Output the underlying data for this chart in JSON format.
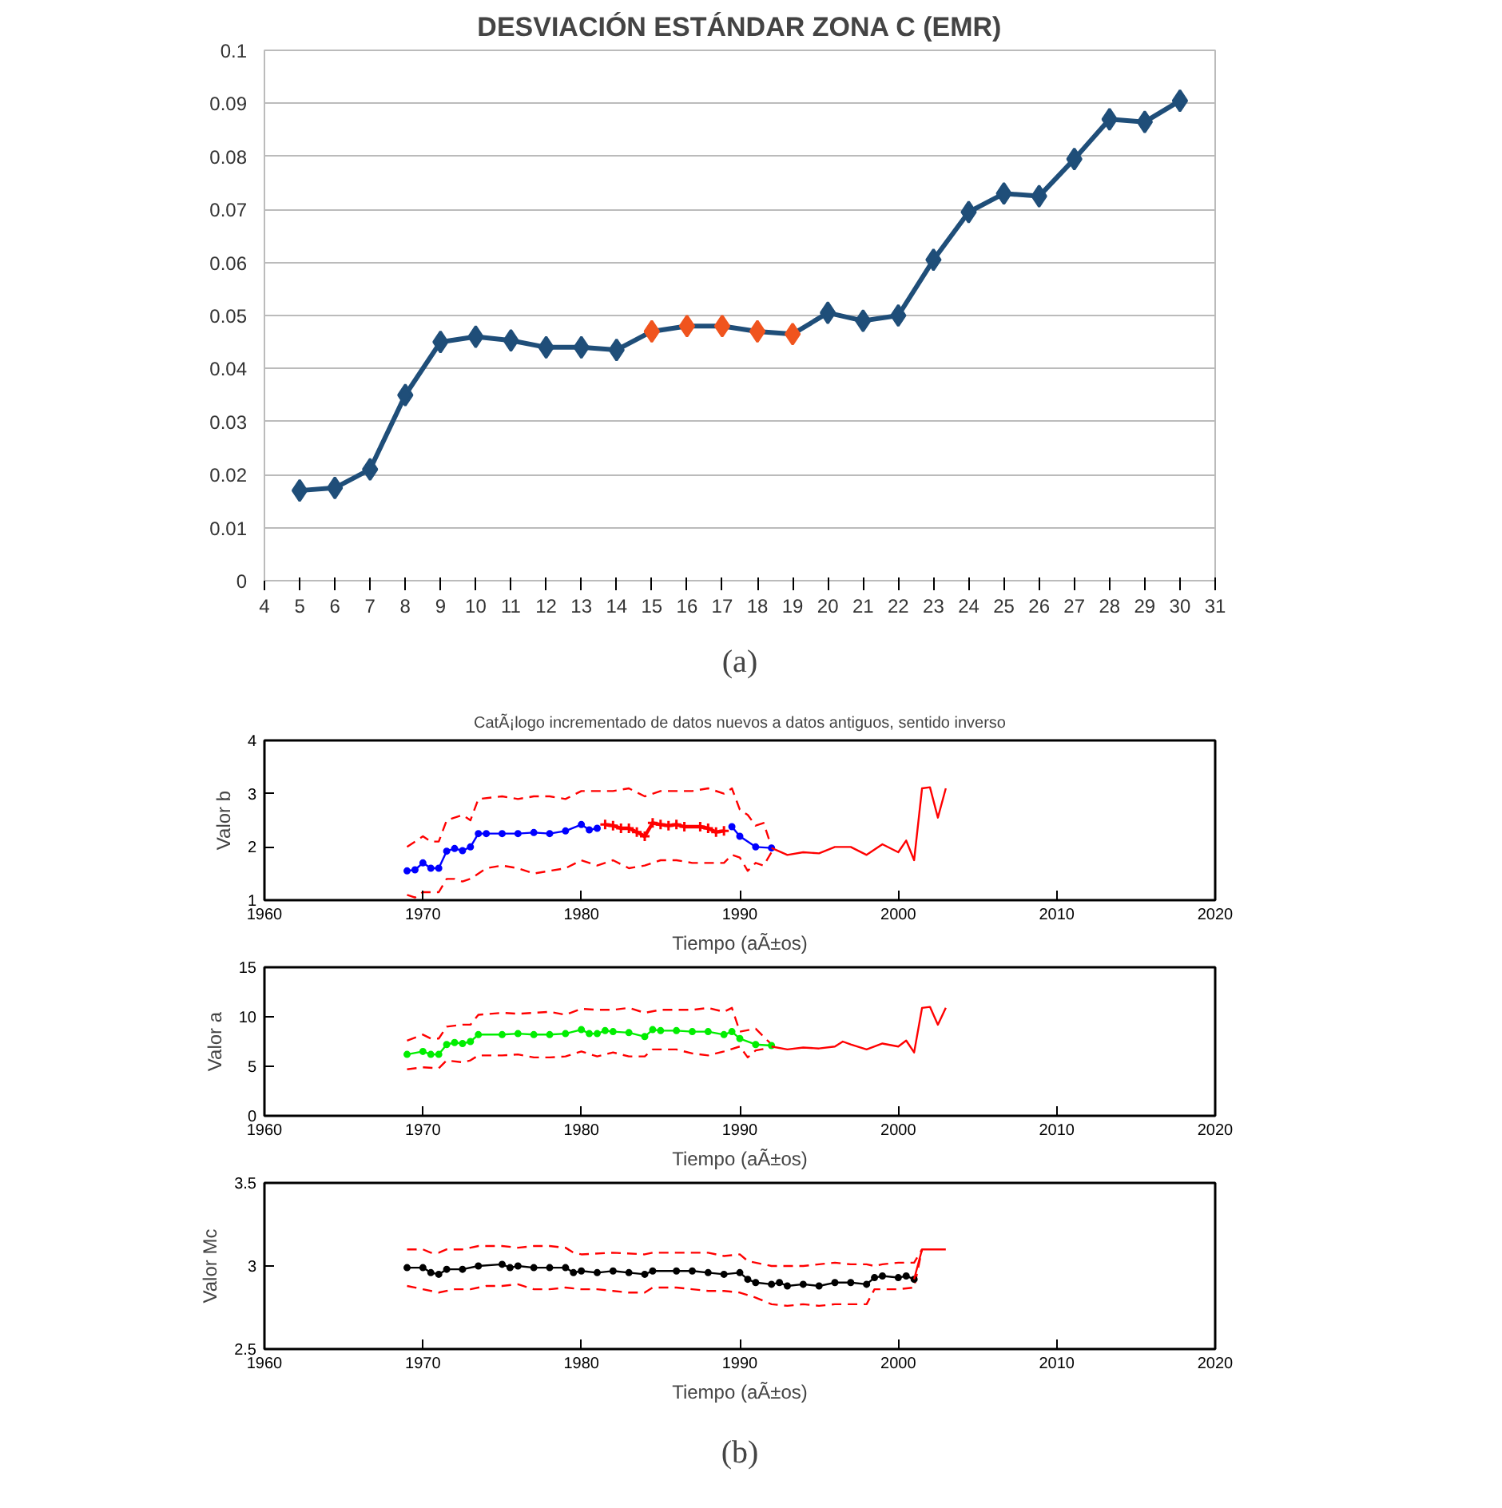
{
  "chart_data": [
    {
      "type": "line",
      "title": "DESVIACIÓN ESTÁNDAR ZONA C (EMR)",
      "xlim": [
        4,
        31
      ],
      "xticks": [
        4,
        5,
        6,
        7,
        8,
        9,
        10,
        11,
        12,
        13,
        14,
        15,
        16,
        17,
        18,
        19,
        20,
        21,
        22,
        23,
        24,
        25,
        26,
        27,
        28,
        29,
        30,
        31
      ],
      "ylim": [
        0,
        0.1
      ],
      "yticks": [
        0,
        0.01,
        0.02,
        0.03,
        0.04,
        0.05,
        0.06,
        0.07,
        0.08,
        0.09,
        0.1
      ],
      "grid": "y",
      "annotations": [
        "(a)"
      ],
      "series": [
        {
          "color": "#1f4e79",
          "marker": "diamond",
          "line_style": "solid",
          "x": [
            5,
            6,
            7,
            8,
            9,
            10,
            11,
            12,
            13,
            14,
            15,
            16,
            17,
            18,
            19,
            20,
            21,
            22,
            23,
            24,
            25,
            26,
            27,
            28,
            29,
            30
          ],
          "values": [
            0.017,
            0.0175,
            0.021,
            0.035,
            0.045,
            0.046,
            0.0453,
            0.044,
            0.044,
            0.0435,
            0.047,
            0.048,
            0.048,
            0.047,
            0.0465,
            0.0505,
            0.049,
            0.05,
            0.0605,
            0.0695,
            0.073,
            0.0725,
            0.0795,
            0.087,
            0.0865,
            0.0905
          ],
          "colors": [
            "#1f4e79",
            "#1f4e79",
            "#1f4e79",
            "#1f4e79",
            "#1f4e79",
            "#1f4e79",
            "#1f4e79",
            "#1f4e79",
            "#1f4e79",
            "#1f4e79",
            "#f0541e",
            "#f0541e",
            "#f0541e",
            "#f0541e",
            "#f0541e",
            "#1f4e79",
            "#1f4e79",
            "#1f4e79",
            "#1f4e79",
            "#1f4e79",
            "#1f4e79",
            "#1f4e79",
            "#1f4e79",
            "#1f4e79",
            "#1f4e79",
            "#1f4e79"
          ]
        }
      ]
    },
    {
      "type": "line",
      "title": "CatÃ¡logo incrementado de datos nuevos a datos antiguos, sentido inverso",
      "xlabel": "Tiempo (aÃ±os)",
      "ylabel": "Valor b",
      "xlim": [
        1960,
        2020
      ],
      "xticks": [
        1960,
        1970,
        1980,
        1990,
        2000,
        2010,
        2020
      ],
      "ylim": [
        1,
        4
      ],
      "yticks": [
        1,
        2,
        3,
        4
      ],
      "grid": false,
      "series": [
        {
          "color": "#ff0000",
          "marker": "none",
          "line_style": "dashed",
          "x": [
            1969,
            1970,
            1970.5,
            1971,
            1971.5,
            1972.5,
            1973,
            1973.5,
            1975,
            1976,
            1977,
            1978,
            1979,
            1980,
            1981,
            1982,
            1983,
            1984,
            1985,
            1986,
            1987,
            1988,
            1989,
            1989.5,
            1990,
            1990.5,
            1991,
            1991.5,
            1992
          ],
          "values": [
            2.0,
            2.2,
            2.1,
            2.1,
            2.5,
            2.6,
            2.5,
            2.9,
            2.95,
            2.9,
            2.95,
            2.95,
            2.9,
            3.05,
            3.05,
            3.05,
            3.1,
            2.95,
            3.05,
            3.05,
            3.05,
            3.1,
            3.0,
            3.1,
            2.7,
            2.6,
            2.4,
            2.45,
            2.0
          ]
        },
        {
          "color": "#ff0000",
          "marker": "none",
          "line_style": "dashed",
          "x": [
            1969,
            1969.5,
            1970,
            1971,
            1971.5,
            1972,
            1972.5,
            1973,
            1974,
            1975,
            1976,
            1977,
            1978,
            1979,
            1980,
            1981,
            1982,
            1983,
            1984,
            1985,
            1986,
            1987,
            1988,
            1989,
            1989.5,
            1990,
            1990.5,
            1991,
            1991.5,
            1992
          ],
          "values": [
            1.1,
            1.05,
            1.15,
            1.15,
            1.4,
            1.4,
            1.35,
            1.4,
            1.6,
            1.65,
            1.6,
            1.5,
            1.55,
            1.6,
            1.75,
            1.65,
            1.75,
            1.6,
            1.65,
            1.75,
            1.75,
            1.7,
            1.7,
            1.7,
            1.85,
            1.8,
            1.55,
            1.7,
            1.65,
            1.9
          ]
        },
        {
          "color": "#0000ff",
          "marker": "circle",
          "line_style": "solid",
          "x": [
            1969,
            1969.5,
            1970,
            1970.5,
            1971,
            1971.5,
            1972,
            1972.5,
            1973,
            1973.5,
            1974,
            1975,
            1976,
            1977,
            1978,
            1979,
            1980,
            1980.5,
            1981,
            null,
            1989.5,
            1990,
            1991,
            1992
          ],
          "values": [
            1.55,
            1.57,
            1.7,
            1.6,
            1.6,
            1.92,
            1.97,
            1.93,
            2.0,
            2.25,
            2.25,
            2.25,
            2.25,
            2.27,
            2.25,
            2.3,
            2.42,
            2.32,
            2.35,
            null,
            2.38,
            2.2,
            2.0,
            1.98
          ]
        },
        {
          "color": "#ff0000",
          "marker": "cross",
          "line_style": "solid",
          "x": [
            1981.5,
            1982,
            1982.5,
            1983,
            1983.5,
            1984,
            1984.5,
            1985,
            1985.5,
            1986,
            1986.5,
            1987.5,
            1988,
            1988.5,
            1989
          ],
          "values": [
            2.42,
            2.4,
            2.35,
            2.35,
            2.28,
            2.2,
            2.45,
            2.42,
            2.4,
            2.42,
            2.38,
            2.38,
            2.35,
            2.28,
            2.3
          ]
        },
        {
          "color": "#ff0000",
          "marker": "none",
          "line_style": "solid",
          "x": [
            1992,
            1993,
            1994,
            1995,
            1996,
            1997,
            1998,
            1999,
            2000,
            2000.5,
            2001,
            2001.5,
            2002,
            2002.5,
            2003
          ],
          "values": [
            1.98,
            1.85,
            1.9,
            1.88,
            2.0,
            2.0,
            1.85,
            2.05,
            1.9,
            2.12,
            1.75,
            3.1,
            3.12,
            2.55,
            3.1
          ]
        }
      ]
    },
    {
      "type": "line",
      "xlabel": "Tiempo (aÃ±os)",
      "ylabel": "Valor a",
      "xlim": [
        1960,
        2020
      ],
      "xticks": [
        1960,
        1970,
        1980,
        1990,
        2000,
        2010,
        2020
      ],
      "ylim": [
        0,
        15
      ],
      "yticks": [
        0,
        5,
        10,
        15
      ],
      "grid": false,
      "series": [
        {
          "color": "#ff0000",
          "marker": "none",
          "line_style": "dashed",
          "x": [
            1969,
            1970,
            1970.5,
            1971,
            1971.5,
            1972.5,
            1973,
            1973.5,
            1975,
            1976,
            1977,
            1978,
            1979,
            1980,
            1981,
            1982,
            1983,
            1984,
            1985,
            1986,
            1987,
            1988,
            1989,
            1989.5,
            1990,
            1991,
            1992
          ],
          "values": [
            7.6,
            8.2,
            7.8,
            7.8,
            9.0,
            9.2,
            9.2,
            10.2,
            10.4,
            10.3,
            10.4,
            10.5,
            10.2,
            10.8,
            10.7,
            10.7,
            10.9,
            10.4,
            10.7,
            10.7,
            10.7,
            10.9,
            10.5,
            10.9,
            8.5,
            8.8,
            7.2
          ]
        },
        {
          "color": "#ff0000",
          "marker": "none",
          "line_style": "dashed",
          "x": [
            1969,
            1970,
            1971,
            1971.5,
            1972.5,
            1973,
            1973.5,
            1975,
            1976,
            1977,
            1978,
            1979,
            1980,
            1981,
            1982,
            1983,
            1984,
            1984.5,
            1986,
            1987,
            1988,
            1989,
            1990,
            1990.5,
            1991,
            1992
          ],
          "values": [
            4.7,
            4.9,
            4.8,
            5.6,
            5.4,
            5.6,
            6.1,
            6.1,
            6.2,
            5.9,
            5.9,
            6.0,
            6.5,
            6.0,
            6.4,
            6.0,
            6.0,
            6.7,
            6.7,
            6.3,
            6.1,
            6.5,
            7.0,
            5.9,
            6.6,
            6.9
          ]
        },
        {
          "color": "#00ee00",
          "marker": "circle",
          "line_style": "solid",
          "x": [
            1969,
            1970,
            1970.5,
            1971,
            1971.5,
            1972,
            1972.5,
            1973,
            1973.5,
            1975,
            1976,
            1977,
            1978,
            1979,
            1980,
            1980.5,
            1981,
            1981.5,
            1982,
            1983,
            1984,
            1984.5,
            1985,
            1986,
            1987,
            1988,
            1989,
            1989.5,
            1990,
            1991,
            1992
          ],
          "values": [
            6.2,
            6.5,
            6.2,
            6.2,
            7.2,
            7.4,
            7.3,
            7.5,
            8.2,
            8.2,
            8.3,
            8.2,
            8.2,
            8.3,
            8.7,
            8.3,
            8.3,
            8.6,
            8.5,
            8.4,
            8.0,
            8.7,
            8.6,
            8.6,
            8.5,
            8.5,
            8.2,
            8.5,
            7.8,
            7.2,
            7.1
          ]
        },
        {
          "color": "#ff0000",
          "marker": "none",
          "line_style": "solid",
          "x": [
            1992,
            1993,
            1994,
            1995,
            1996,
            1996.5,
            1997,
            1998,
            1999,
            2000,
            2000.5,
            2001,
            2001.5,
            2002,
            2002.5,
            2003
          ],
          "values": [
            7.0,
            6.7,
            6.9,
            6.8,
            7.0,
            7.5,
            7.2,
            6.7,
            7.3,
            7.0,
            7.6,
            6.4,
            10.9,
            11.0,
            9.2,
            10.9
          ]
        }
      ]
    },
    {
      "type": "line",
      "xlabel": "Tiempo (aÃ±os)",
      "ylabel": "Valor Mc",
      "xlim": [
        1960,
        2020
      ],
      "xticks": [
        1960,
        1970,
        1980,
        1990,
        2000,
        2010,
        2020
      ],
      "ylim": [
        2.5,
        3.5
      ],
      "yticks": [
        2.5,
        3,
        3.5
      ],
      "grid": false,
      "annotations": [
        "(b)"
      ],
      "series": [
        {
          "color": "#ff0000",
          "marker": "none",
          "line_style": "dashed",
          "x": [
            1969,
            1970,
            1970.5,
            1971,
            1971.5,
            1972.5,
            1973.5,
            1975,
            1976,
            1977,
            1978,
            1979,
            1979.5,
            1980,
            1982,
            1984,
            1984.5,
            1986,
            1988,
            1989,
            1990,
            1990.5,
            1992,
            1993,
            1994,
            1995,
            1996,
            1997,
            1998,
            1998.5,
            1999,
            2000,
            2001,
            2001.5
          ],
          "values": [
            3.1,
            3.1,
            3.08,
            3.08,
            3.1,
            3.1,
            3.12,
            3.12,
            3.11,
            3.12,
            3.12,
            3.11,
            3.08,
            3.07,
            3.08,
            3.07,
            3.08,
            3.08,
            3.08,
            3.06,
            3.07,
            3.03,
            3.0,
            3.0,
            3.0,
            3.01,
            3.02,
            3.01,
            3.01,
            3.0,
            3.01,
            3.02,
            3.02,
            3.1
          ]
        },
        {
          "color": "#ff0000",
          "marker": "none",
          "line_style": "dashed",
          "x": [
            1969,
            1970,
            1971,
            1972,
            1973,
            1974,
            1975,
            1976,
            1977,
            1978,
            1979,
            1980,
            1981,
            1982,
            1983,
            1984,
            1984.5,
            1986,
            1987,
            1988,
            1989,
            1990,
            1991,
            1992,
            1993,
            1994,
            1995,
            1996,
            1997,
            1998,
            1998.5,
            2000,
            2001,
            2001.5
          ],
          "values": [
            2.88,
            2.86,
            2.84,
            2.86,
            2.86,
            2.88,
            2.88,
            2.89,
            2.86,
            2.86,
            2.87,
            2.86,
            2.86,
            2.85,
            2.84,
            2.84,
            2.87,
            2.87,
            2.86,
            2.85,
            2.85,
            2.84,
            2.81,
            2.77,
            2.76,
            2.77,
            2.76,
            2.77,
            2.77,
            2.77,
            2.86,
            2.86,
            2.87,
            3.1
          ]
        },
        {
          "color": "#000000",
          "marker": "circle",
          "line_style": "solid",
          "x": [
            1969,
            1970,
            1970.5,
            1971,
            1971.5,
            1972.5,
            1973.5,
            1975,
            1975.5,
            1976,
            1977,
            1978,
            1979,
            1979.5,
            1980,
            1981,
            1982,
            1983,
            1984,
            1984.5,
            1986,
            1987,
            1988,
            1989,
            1990,
            1990.5,
            1991,
            1992,
            1992.5,
            1993,
            1994,
            1995,
            1996,
            1997,
            1998,
            1998.5,
            1999,
            2000,
            2000.5,
            2001
          ],
          "values": [
            2.99,
            2.99,
            2.96,
            2.95,
            2.98,
            2.98,
            3.0,
            3.01,
            2.99,
            3.0,
            2.99,
            2.99,
            2.99,
            2.96,
            2.97,
            2.96,
            2.97,
            2.96,
            2.95,
            2.97,
            2.97,
            2.97,
            2.96,
            2.95,
            2.96,
            2.92,
            2.9,
            2.89,
            2.9,
            2.88,
            2.89,
            2.88,
            2.9,
            2.9,
            2.89,
            2.93,
            2.94,
            2.93,
            2.94,
            2.92
          ]
        },
        {
          "color": "#ff0000",
          "marker": "none",
          "line_style": "solid",
          "x": [
            2001,
            2001.5,
            2002,
            2002.5,
            2003
          ],
          "values": [
            2.92,
            3.1,
            3.1,
            3.1,
            3.1
          ]
        }
      ]
    }
  ]
}
